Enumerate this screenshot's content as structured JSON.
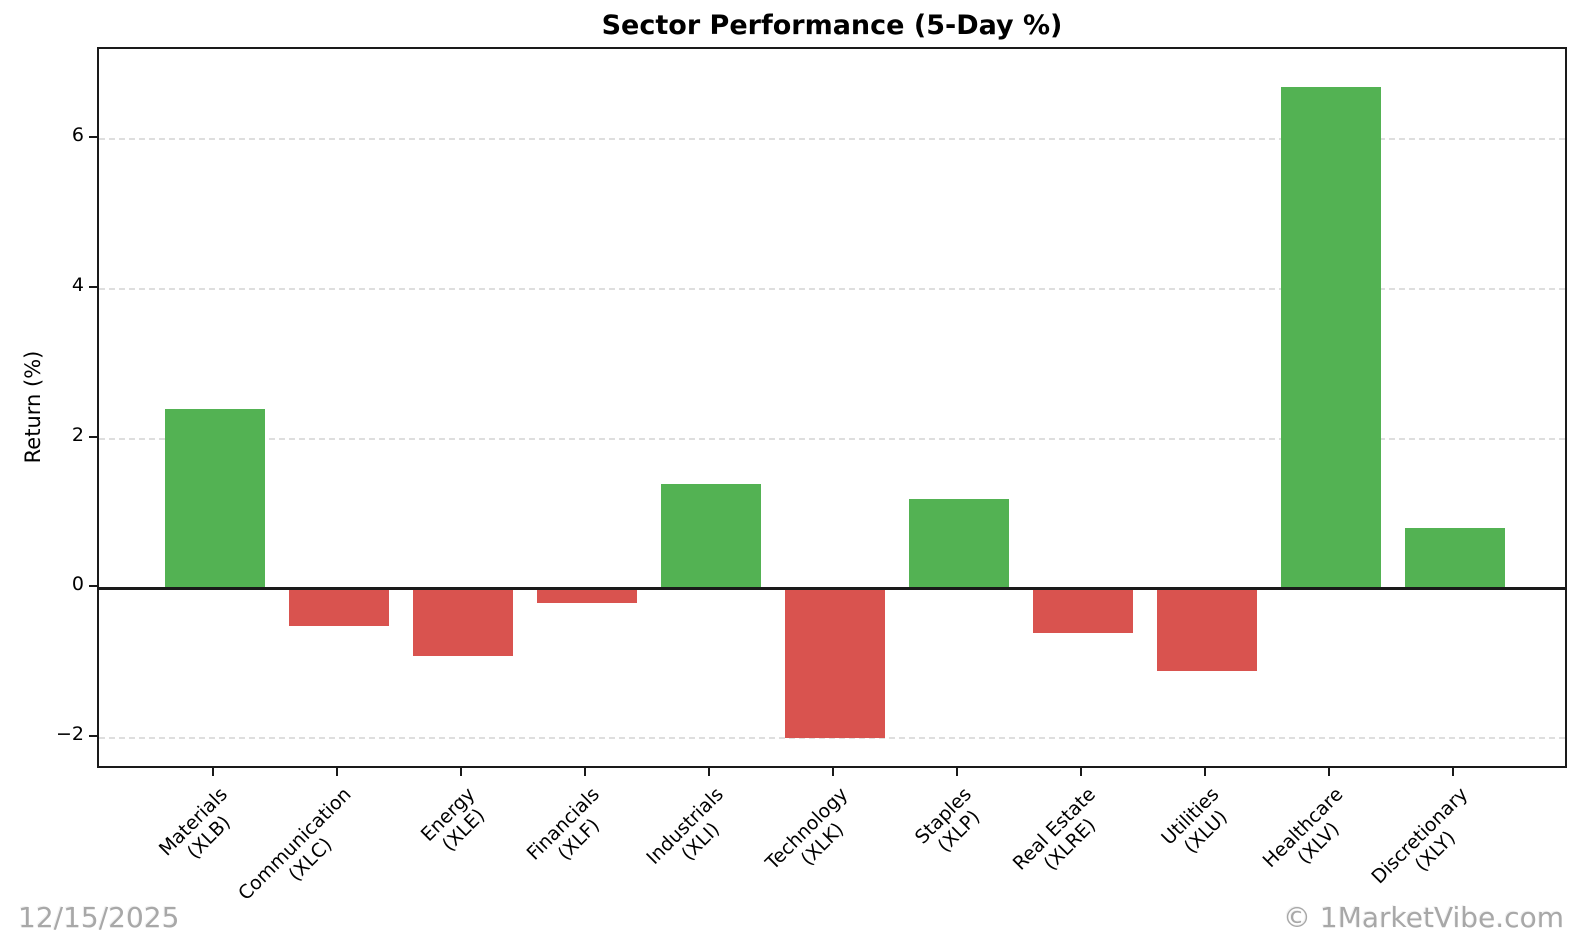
{
  "chart_data": {
    "type": "bar",
    "title": "Sector Performance (5-Day %)",
    "xlabel": "",
    "ylabel": "Return (%)",
    "categories": [
      "Materials\n(XLB)",
      "Communication\n(XLC)",
      "Energy\n(XLE)",
      "Financials\n(XLF)",
      "Industrials\n(XLI)",
      "Technology\n(XLK)",
      "Staples\n(XLP)",
      "Real Estate\n(XLRE)",
      "Utilities\n(XLU)",
      "Healthcare\n(XLV)",
      "Discretionary\n(XLY)"
    ],
    "values": [
      2.4,
      -0.5,
      -0.9,
      -0.2,
      1.4,
      -2.0,
      1.2,
      -0.6,
      -1.1,
      6.7,
      0.8
    ],
    "y_ticks": [
      -2,
      0,
      2,
      4,
      6
    ],
    "ylim": [
      -2.43,
      7.21
    ],
    "grid": "dashed horizontal at y ticks, solid black line at 0",
    "legend_position": "none",
    "colors": {
      "positive": "#53b253",
      "negative": "#d9534f",
      "grid": "#dedede",
      "axis": "#1a1a1a"
    }
  },
  "footer": {
    "date": "12/15/2025",
    "credit": "© 1MarketVibe.com"
  }
}
